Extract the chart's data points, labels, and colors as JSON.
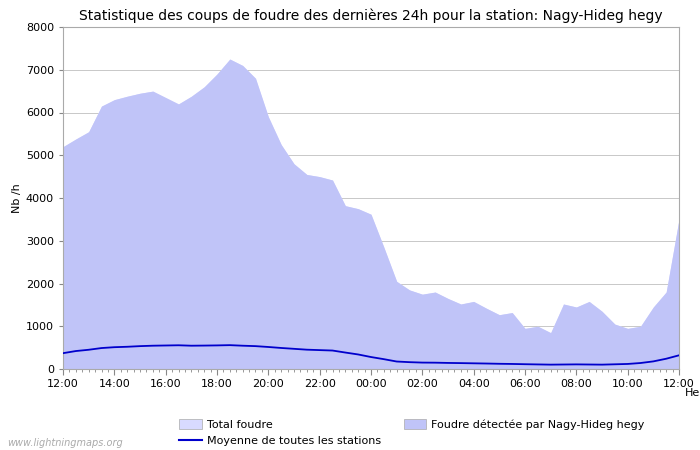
{
  "title": "Statistique des coups de foudre des dernières 24h pour la station: Nagy-Hideg hegy",
  "ylabel": "Nb /h",
  "ylim": [
    0,
    8000
  ],
  "yticks": [
    0,
    1000,
    2000,
    3000,
    4000,
    5000,
    6000,
    7000,
    8000
  ],
  "watermark": "www.lightningmaps.org",
  "legend_total": "Total foudre",
  "legend_moyenne": "Moyenne de toutes les stations",
  "legend_station": "Foudre détectée par Nagy-Hideg hegy",
  "x_labels": [
    "12:00",
    "14:00",
    "16:00",
    "18:00",
    "20:00",
    "22:00",
    "00:00",
    "02:00",
    "04:00",
    "06:00",
    "08:00",
    "10:00",
    "12:00"
  ],
  "fill_color_total": "#d8daff",
  "fill_color_station": "#c0c4f8",
  "line_color": "#0000cc",
  "bg_color": "#ffffff",
  "grid_color": "#c8c8c8",
  "title_fontsize": 10,
  "axis_fontsize": 8,
  "tick_fontsize": 8,
  "total_foudre": [
    5200,
    5380,
    5550,
    6150,
    6300,
    6380,
    6450,
    6500,
    6350,
    6200,
    6380,
    6600,
    6900,
    7250,
    7100,
    6800,
    5900,
    5250,
    4800,
    4550,
    4500,
    4420,
    3820,
    3750,
    3620,
    2850,
    2050,
    1850,
    1750,
    1800,
    1650,
    1520,
    1580,
    1420,
    1270,
    1320,
    950,
    1000,
    850,
    1520,
    1450,
    1580,
    1350,
    1050,
    950,
    1000,
    1450,
    1800,
    3500
  ],
  "station_foudre": [
    5200,
    5380,
    5550,
    6150,
    6300,
    6380,
    6450,
    6500,
    6350,
    6200,
    6380,
    6600,
    6900,
    7250,
    7100,
    6800,
    5900,
    5250,
    4800,
    4550,
    4500,
    4420,
    3820,
    3750,
    3620,
    2850,
    2050,
    1850,
    1750,
    1800,
    1650,
    1520,
    1580,
    1420,
    1270,
    1320,
    950,
    1000,
    850,
    1520,
    1450,
    1580,
    1350,
    1050,
    950,
    1000,
    1450,
    1800,
    3500
  ],
  "moyenne": [
    370,
    420,
    450,
    490,
    510,
    520,
    535,
    545,
    550,
    555,
    545,
    548,
    552,
    558,
    545,
    535,
    515,
    492,
    472,
    452,
    442,
    432,
    385,
    340,
    280,
    230,
    175,
    160,
    150,
    148,
    142,
    138,
    133,
    128,
    122,
    118,
    112,
    107,
    102,
    105,
    108,
    105,
    102,
    110,
    118,
    140,
    178,
    240,
    320
  ]
}
